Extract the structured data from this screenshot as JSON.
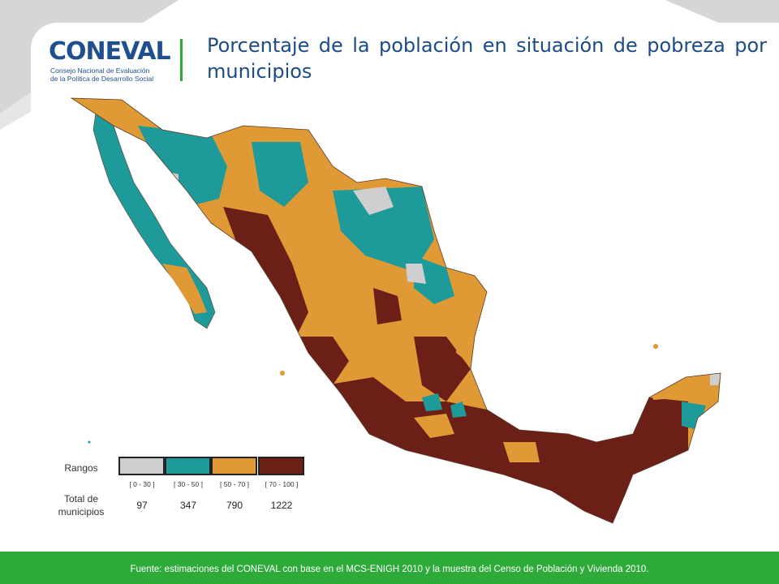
{
  "header": {
    "logo_text": "CONEVAL",
    "logo_subtitle_line1": "Consejo Nacional de Evaluación",
    "logo_subtitle_line2": "de la Política de Desarrollo Social",
    "title": "Porcentaje de la población en situación de pobreza por municipios"
  },
  "legend": {
    "heading": "Rangos",
    "count_heading_line1": "Total de",
    "count_heading_line2": "municipios",
    "ranges": [
      {
        "label": "[ 0 - 30 ]",
        "count": "97",
        "color": "#cfcfcf"
      },
      {
        "label": "[ 30 - 50 ]",
        "count": "347",
        "color": "#1f9a9a"
      },
      {
        "label": "[ 50 - 70 ]",
        "count": "790",
        "color": "#e09a35"
      },
      {
        "label": "[ 70 - 100 ]",
        "count": "1222",
        "color": "#6b1f17"
      }
    ]
  },
  "footer": {
    "source": "Fuente: estimaciones del CONEVAL con base en  el MCS-ENIGH 2010 y la muestra del  Censo de Población y Vivienda 2010."
  },
  "colors": {
    "accent_green": "#2eaa3a",
    "title_blue": "#1c4c86",
    "background_gray": "#d9d9d9"
  }
}
